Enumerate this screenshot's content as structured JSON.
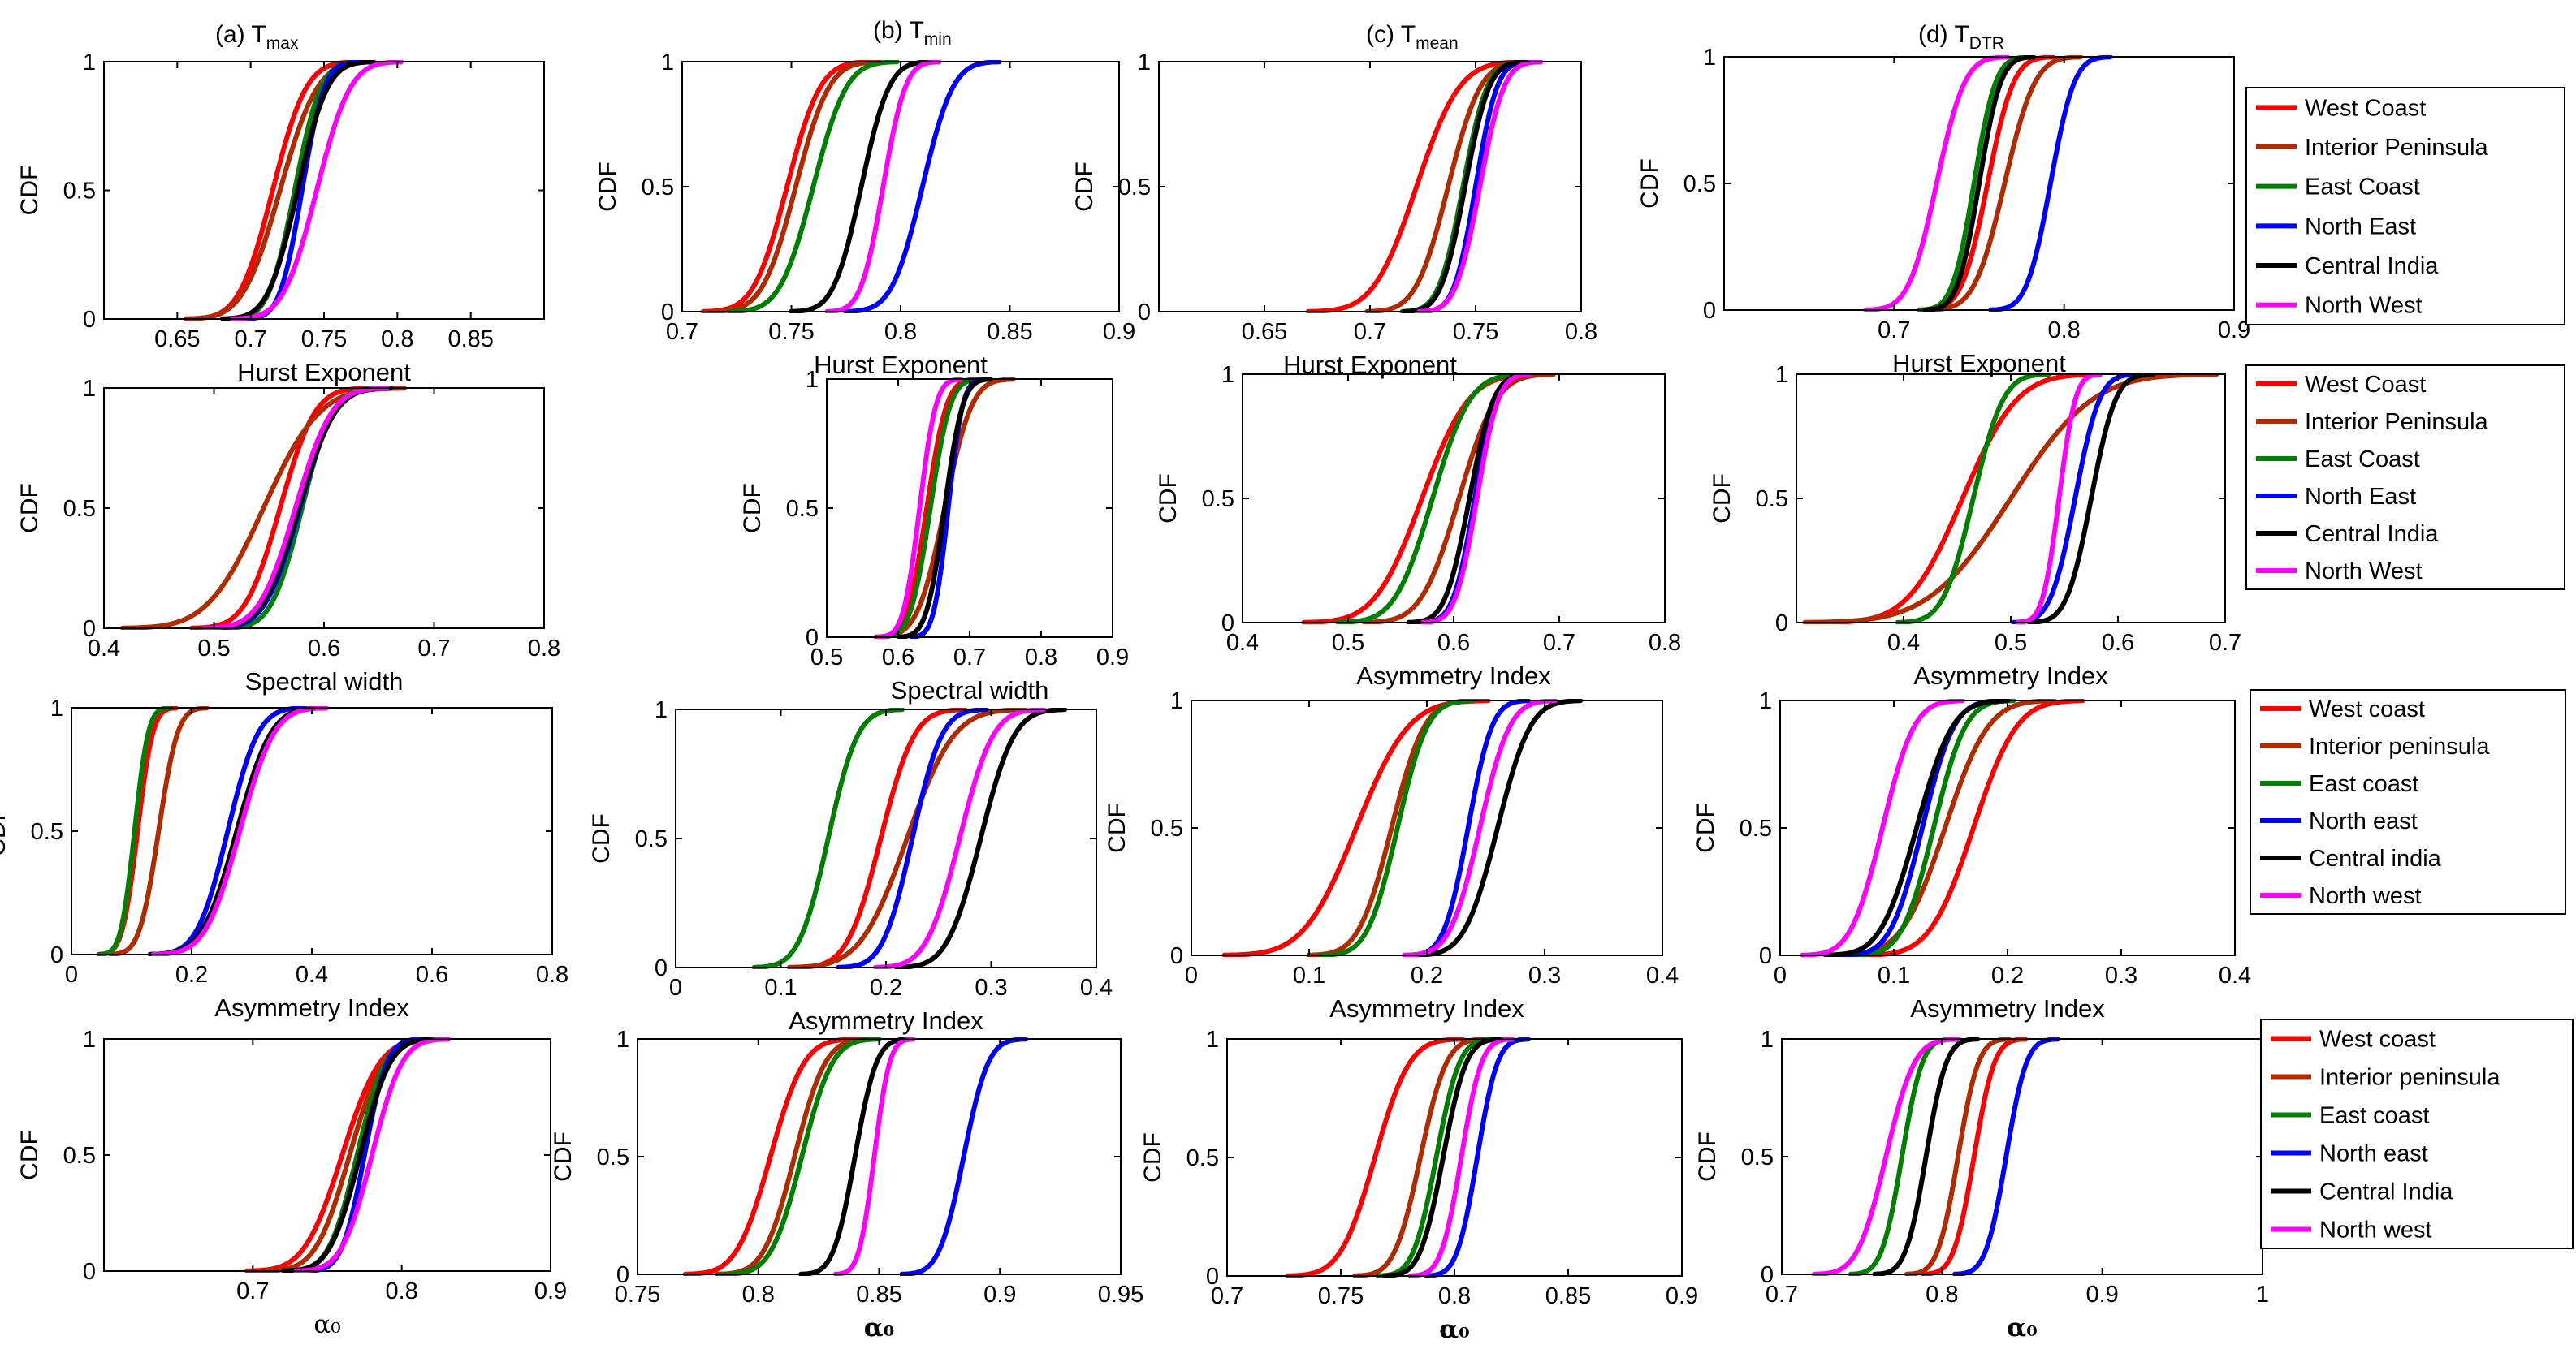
{
  "figure": {
    "column_titles": [
      {
        "main": "(a) T",
        "sub": "max"
      },
      {
        "main": "(b) T",
        "sub": "min"
      },
      {
        "main": "(c) T",
        "sub": "mean"
      },
      {
        "main": "(d) T",
        "sub": "DTR"
      }
    ],
    "colors": {
      "West": "#ff0000",
      "Interior": "#b22a00",
      "East": "#008000",
      "NorthEast": "#0000ff",
      "Central": "#000000",
      "NorthWest": "#ff00ff"
    },
    "legends": [
      [
        "West Coast",
        "Interior Peninsula",
        "East Coast",
        "North East",
        "Central India",
        "North West"
      ],
      [
        "West Coast",
        "Interior Peninsula",
        "East Coast",
        "North East",
        "Central India",
        "North West"
      ],
      [
        "West coast",
        "Interior peninsula",
        "East coast",
        "North east",
        "Central india",
        "North west"
      ],
      [
        "West coast",
        "Interior peninsula",
        "East coast",
        "North east",
        "Central India",
        "North west"
      ]
    ]
  },
  "chart_data": [
    {
      "id": "r0c0",
      "type": "line",
      "ylabel": "CDF",
      "xlabel": "Hurst Exponent",
      "yticks": [
        "0",
        "0.5",
        "1"
      ],
      "xlim": [
        0.6,
        0.9
      ],
      "ylim": [
        0,
        1
      ],
      "xticks": [
        "0.65",
        "0.7",
        "0.75",
        "0.8",
        "0.85"
      ],
      "series": [
        {
          "name": "West Coast",
          "mean": 0.715,
          "sd": 0.018
        },
        {
          "name": "Interior Peninsula",
          "mean": 0.72,
          "sd": 0.02
        },
        {
          "name": "East Coast",
          "mean": 0.73,
          "sd": 0.014
        },
        {
          "name": "North East",
          "mean": 0.735,
          "sd": 0.012
        },
        {
          "name": "Central India",
          "mean": 0.732,
          "sd": 0.016
        },
        {
          "name": "North West",
          "mean": 0.745,
          "sd": 0.018
        }
      ]
    },
    {
      "id": "r0c1",
      "type": "line",
      "ylabel": "CDF",
      "xlabel": "Hurst Exponent",
      "yticks": [
        "0",
        "0.5",
        "1"
      ],
      "xlim": [
        0.7,
        0.9
      ],
      "ylim": [
        0,
        1
      ],
      "xticks": [
        "0.7",
        "0.75",
        "0.8",
        "0.85",
        "0.9"
      ],
      "series": [
        {
          "name": "West Coast",
          "mean": 0.748,
          "sd": 0.012
        },
        {
          "name": "Interior Peninsula",
          "mean": 0.752,
          "sd": 0.012
        },
        {
          "name": "East Coast",
          "mean": 0.76,
          "sd": 0.012
        },
        {
          "name": "North East",
          "mean": 0.81,
          "sd": 0.011
        },
        {
          "name": "Central India",
          "mean": 0.782,
          "sd": 0.01
        },
        {
          "name": "North West",
          "mean": 0.792,
          "sd": 0.008
        }
      ]
    },
    {
      "id": "r0c2",
      "type": "line",
      "ylabel": "CDF",
      "xlabel": "Hurst Exponent",
      "yticks": [
        "0",
        "0.5",
        "1"
      ],
      "xlim": [
        0.6,
        0.8
      ],
      "ylim": [
        0,
        1
      ],
      "xticks": [
        "0.65",
        "0.7",
        "0.75",
        "0.8"
      ],
      "series": [
        {
          "name": "West Coast",
          "mean": 0.722,
          "sd": 0.016
        },
        {
          "name": "Interior Peninsula",
          "mean": 0.737,
          "sd": 0.012
        },
        {
          "name": "East Coast",
          "mean": 0.744,
          "sd": 0.009
        },
        {
          "name": "North East",
          "mean": 0.75,
          "sd": 0.008
        },
        {
          "name": "Central India",
          "mean": 0.745,
          "sd": 0.009
        },
        {
          "name": "North West",
          "mean": 0.752,
          "sd": 0.009
        }
      ]
    },
    {
      "id": "r0c3",
      "type": "line",
      "ylabel": "CDF",
      "xlabel": "Hurst Exponent",
      "yticks": [
        "0",
        "0.5",
        "1"
      ],
      "xlim": [
        0.6,
        0.9
      ],
      "ylim": [
        0,
        1
      ],
      "xticks": [
        "0.7",
        "0.8",
        "0.9"
      ],
      "series": [
        {
          "name": "West Coast",
          "mean": 0.755,
          "sd": 0.012
        },
        {
          "name": "Interior Peninsula",
          "mean": 0.765,
          "sd": 0.014
        },
        {
          "name": "East Coast",
          "mean": 0.747,
          "sd": 0.01
        },
        {
          "name": "North East",
          "mean": 0.792,
          "sd": 0.011
        },
        {
          "name": "Central India",
          "mean": 0.75,
          "sd": 0.01
        },
        {
          "name": "North West",
          "mean": 0.725,
          "sd": 0.013
        }
      ]
    },
    {
      "id": "r1c0",
      "type": "line",
      "ylabel": "CDF",
      "xlabel": "Spectral width",
      "yticks": [
        "0",
        "0.5",
        "1"
      ],
      "xlim": [
        0.4,
        0.8
      ],
      "ylim": [
        0,
        1
      ],
      "xticks": [
        "0.4",
        "0.5",
        "0.6",
        "0.7",
        "0.8"
      ],
      "series": [
        {
          "name": "West Coast",
          "mean": 0.56,
          "sd": 0.025
        },
        {
          "name": "Interior Peninsula",
          "mean": 0.545,
          "sd": 0.04
        },
        {
          "name": "East Coast",
          "mean": 0.58,
          "sd": 0.022
        },
        {
          "name": "North East",
          "mean": 0.578,
          "sd": 0.025
        },
        {
          "name": "Central India",
          "mean": 0.577,
          "sd": 0.026
        },
        {
          "name": "North West",
          "mean": 0.574,
          "sd": 0.026
        }
      ]
    },
    {
      "id": "r1c1",
      "type": "line",
      "ylabel": "CDF",
      "xlabel": "Spectral width",
      "yticks": [
        "0",
        "0.5",
        "1"
      ],
      "xlim": [
        0.5,
        0.9
      ],
      "ylim": [
        0,
        1
      ],
      "xticks": [
        "0.5",
        "0.6",
        "0.7",
        "0.8",
        "0.9"
      ],
      "series": [
        {
          "name": "West Coast",
          "mean": 0.64,
          "sd": 0.022
        },
        {
          "name": "Interior Peninsula",
          "mean": 0.665,
          "sd": 0.03
        },
        {
          "name": "East Coast",
          "mean": 0.645,
          "sd": 0.022
        },
        {
          "name": "North East",
          "mean": 0.67,
          "sd": 0.016
        },
        {
          "name": "Central India",
          "mean": 0.665,
          "sd": 0.02
        },
        {
          "name": "North West",
          "mean": 0.63,
          "sd": 0.018
        }
      ]
    },
    {
      "id": "r1c2",
      "type": "line",
      "ylabel": "CDF",
      "xlabel": "Asymmetry Index",
      "yticks": [
        "0",
        "0.5",
        "1"
      ],
      "xlim": [
        0.4,
        0.8
      ],
      "ylim": [
        0,
        1
      ],
      "xticks": [
        "0.4",
        "0.5",
        "0.6",
        "0.7",
        "0.8"
      ],
      "series": [
        {
          "name": "West Coast",
          "mean": 0.57,
          "sd": 0.035
        },
        {
          "name": "Interior Peninsula",
          "mean": 0.605,
          "sd": 0.028
        },
        {
          "name": "East Coast",
          "mean": 0.58,
          "sd": 0.028
        },
        {
          "name": "North East",
          "mean": 0.62,
          "sd": 0.016
        },
        {
          "name": "Central India",
          "mean": 0.615,
          "sd": 0.018
        },
        {
          "name": "North West",
          "mean": 0.622,
          "sd": 0.016
        }
      ]
    },
    {
      "id": "r1c3",
      "type": "line",
      "ylabel": "CDF",
      "xlabel": "Asymmetry Index",
      "yticks": [
        "0",
        "0.5",
        "1"
      ],
      "xlim": [
        0.3,
        0.7
      ],
      "ylim": [
        0,
        1
      ],
      "xticks": [
        "0.4",
        "0.5",
        "0.6",
        "0.7"
      ],
      "series": [
        {
          "name": "West Coast",
          "mean": 0.455,
          "sd": 0.04
        },
        {
          "name": "Interior Peninsula",
          "mean": 0.5,
          "sd": 0.06
        },
        {
          "name": "East Coast",
          "mean": 0.465,
          "sd": 0.022
        },
        {
          "name": "North East",
          "mean": 0.56,
          "sd": 0.018
        },
        {
          "name": "Central India",
          "mean": 0.575,
          "sd": 0.018
        },
        {
          "name": "North West",
          "mean": 0.545,
          "sd": 0.012
        }
      ]
    },
    {
      "id": "r2c0",
      "type": "line",
      "ylabel": "CDF",
      "xlabel": "Asymmetry Index",
      "yticks": [
        "0",
        "0.5",
        "1"
      ],
      "xlim": [
        0,
        0.8
      ],
      "ylim": [
        0,
        1
      ],
      "xticks": [
        "0",
        "0.2",
        "0.4",
        "0.6",
        "0.8"
      ],
      "series": [
        {
          "name": "West Coast",
          "mean": 0.11,
          "sd": 0.02
        },
        {
          "name": "Interior Peninsula",
          "mean": 0.145,
          "sd": 0.025
        },
        {
          "name": "East Coast",
          "mean": 0.105,
          "sd": 0.018
        },
        {
          "name": "North East",
          "mean": 0.26,
          "sd": 0.04
        },
        {
          "name": "Central India",
          "mean": 0.275,
          "sd": 0.045
        },
        {
          "name": "North West",
          "mean": 0.28,
          "sd": 0.045
        }
      ]
    },
    {
      "id": "r2c1",
      "type": "line",
      "ylabel": "CDF",
      "xlabel": "Asymmetry Index",
      "yticks": [
        "0",
        "0.5",
        "1"
      ],
      "xlim": [
        0,
        0.4
      ],
      "ylim": [
        0,
        1
      ],
      "xticks": [
        "0",
        "0.1",
        "0.2",
        "0.3",
        "0.4"
      ],
      "series": [
        {
          "name": "West Coast",
          "mean": 0.195,
          "sd": 0.025
        },
        {
          "name": "Interior Peninsula",
          "mean": 0.22,
          "sd": 0.035
        },
        {
          "name": "East Coast",
          "mean": 0.145,
          "sd": 0.022
        },
        {
          "name": "North East",
          "mean": 0.225,
          "sd": 0.022
        },
        {
          "name": "Central India",
          "mean": 0.29,
          "sd": 0.025
        },
        {
          "name": "North West",
          "mean": 0.27,
          "sd": 0.025
        }
      ]
    },
    {
      "id": "r2c2",
      "type": "line",
      "ylabel": "CDF",
      "xlabel": "Asymmetry Index",
      "yticks": [
        "0",
        "0.5",
        "1"
      ],
      "xlim": [
        0,
        0.4
      ],
      "ylim": [
        0,
        1
      ],
      "xticks": [
        "0",
        "0.1",
        "0.2",
        "0.3",
        "0.4"
      ],
      "series": [
        {
          "name": "West coast",
          "mean": 0.14,
          "sd": 0.035
        },
        {
          "name": "Interior peninsula",
          "mean": 0.17,
          "sd": 0.022
        },
        {
          "name": "East coast",
          "mean": 0.175,
          "sd": 0.02
        },
        {
          "name": "North east",
          "mean": 0.235,
          "sd": 0.016
        },
        {
          "name": "Central india",
          "mean": 0.26,
          "sd": 0.022
        },
        {
          "name": "North west",
          "mean": 0.245,
          "sd": 0.02
        }
      ]
    },
    {
      "id": "r2c3",
      "type": "line",
      "ylabel": "CDF",
      "xlabel": "Asymmetry Index",
      "yticks": [
        "0",
        "0.5",
        "1"
      ],
      "xlim": [
        0,
        0.4
      ],
      "ylim": [
        0,
        1
      ],
      "xticks": [
        "0",
        "0.1",
        "0.2",
        "0.3",
        "0.4"
      ],
      "series": [
        {
          "name": "West coast",
          "mean": 0.17,
          "sd": 0.03
        },
        {
          "name": "Interior peninsula",
          "mean": 0.145,
          "sd": 0.03
        },
        {
          "name": "East coast",
          "mean": 0.135,
          "sd": 0.022
        },
        {
          "name": "North east",
          "mean": 0.125,
          "sd": 0.022
        },
        {
          "name": "Central india",
          "mean": 0.12,
          "sd": 0.025
        },
        {
          "name": "North west",
          "mean": 0.09,
          "sd": 0.022
        }
      ]
    },
    {
      "id": "r3c0",
      "type": "line",
      "ylabel": "CDF",
      "xlabel": "α₀",
      "yticks": [
        "0",
        "0.5",
        "1"
      ],
      "xlim": [
        0.6,
        0.9
      ],
      "ylim": [
        0,
        1
      ],
      "xticks": [
        "0.7",
        "0.8",
        "0.9"
      ],
      "series": [
        {
          "name": "West coast",
          "mean": 0.76,
          "sd": 0.02
        },
        {
          "name": "Interior peninsula",
          "mean": 0.765,
          "sd": 0.018
        },
        {
          "name": "East coast",
          "mean": 0.77,
          "sd": 0.015
        },
        {
          "name": "North east",
          "mean": 0.775,
          "sd": 0.012
        },
        {
          "name": "Central India",
          "mean": 0.772,
          "sd": 0.016
        },
        {
          "name": "North west",
          "mean": 0.78,
          "sd": 0.016
        }
      ]
    },
    {
      "id": "r3c1",
      "type": "line",
      "ylabel": "CDF",
      "xlabel": "α₀",
      "yticks": [
        "0",
        "0.5",
        "1"
      ],
      "xlim": [
        0.75,
        0.95
      ],
      "ylim": [
        0,
        1
      ],
      "xticks": [
        "0.75",
        "0.8",
        "0.85",
        "0.9",
        "0.95"
      ],
      "series": [
        {
          "name": "West coast",
          "mean": 0.805,
          "sd": 0.011
        },
        {
          "name": "Interior peninsula",
          "mean": 0.815,
          "sd": 0.01
        },
        {
          "name": "East coast",
          "mean": 0.818,
          "sd": 0.01
        },
        {
          "name": "North east",
          "mean": 0.885,
          "sd": 0.008
        },
        {
          "name": "Central India",
          "mean": 0.84,
          "sd": 0.007
        },
        {
          "name": "North west",
          "mean": 0.848,
          "sd": 0.005
        }
      ]
    },
    {
      "id": "r3c2",
      "type": "line",
      "ylabel": "CDF",
      "xlabel": "α₀",
      "yticks": [
        "0",
        "0.5",
        "1"
      ],
      "xlim": [
        0.7,
        0.9
      ],
      "ylim": [
        0,
        1
      ],
      "xticks": [
        "0.7",
        "0.75",
        "0.8",
        "0.85",
        "0.9"
      ],
      "series": [
        {
          "name": "West coast",
          "mean": 0.765,
          "sd": 0.012
        },
        {
          "name": "Interior peninsula",
          "mean": 0.785,
          "sd": 0.009
        },
        {
          "name": "East coast",
          "mean": 0.792,
          "sd": 0.008
        },
        {
          "name": "North east",
          "mean": 0.81,
          "sd": 0.007
        },
        {
          "name": "Central India",
          "mean": 0.795,
          "sd": 0.008
        },
        {
          "name": "North west",
          "mean": 0.803,
          "sd": 0.007
        }
      ]
    },
    {
      "id": "r3c3",
      "type": "line",
      "ylabel": "CDF",
      "xlabel": "α₀",
      "yticks": [
        "0",
        "0.5",
        "1"
      ],
      "xlim": [
        0.7,
        1.0
      ],
      "ylim": [
        0,
        1
      ],
      "xticks": [
        "0.7",
        "0.8",
        "0.9",
        "1"
      ],
      "series": [
        {
          "name": "West coast",
          "mean": 0.82,
          "sd": 0.01
        },
        {
          "name": "Interior peninsula",
          "mean": 0.81,
          "sd": 0.01
        },
        {
          "name": "East coast",
          "mean": 0.775,
          "sd": 0.01
        },
        {
          "name": "North east",
          "mean": 0.84,
          "sd": 0.01
        },
        {
          "name": "Central India",
          "mean": 0.79,
          "sd": 0.01
        },
        {
          "name": "North west",
          "mean": 0.765,
          "sd": 0.014
        }
      ]
    }
  ]
}
